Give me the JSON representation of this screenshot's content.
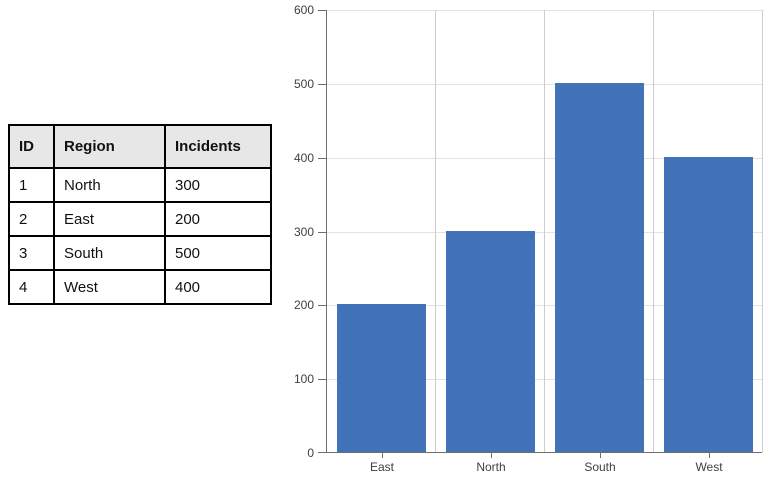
{
  "table": {
    "columns": [
      "ID",
      "Region",
      "Incidents"
    ],
    "rows": [
      [
        "1",
        "North",
        "300"
      ],
      [
        "2",
        "East",
        "200"
      ],
      [
        "3",
        "South",
        "500"
      ],
      [
        "4",
        "West",
        "400"
      ]
    ]
  },
  "chart_data": {
    "type": "bar",
    "categories": [
      "East",
      "North",
      "South",
      "West"
    ],
    "values": [
      200,
      300,
      500,
      400
    ],
    "title": "",
    "xlabel": "",
    "ylabel": "",
    "ylim": [
      0,
      600
    ],
    "ytick_interval": 100,
    "ytick_labels": [
      "0",
      "100",
      "200",
      "300",
      "400",
      "500",
      "600"
    ],
    "grid": true,
    "legend": false
  },
  "colors": {
    "bar": "#4273B8",
    "grid_horizontal": "#E2E2E2",
    "grid_vertical": "#CDCDCD",
    "axis": "#6E6E6E",
    "tick_label": "#3F3F3F",
    "table_header_bg": "#E7E7E7",
    "table_border": "#000000",
    "background": "#FFFFFF"
  }
}
